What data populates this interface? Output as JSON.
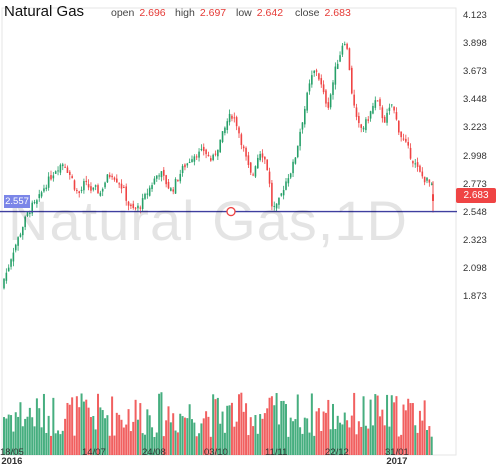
{
  "header": {
    "title": "Natural Gas",
    "open_label": "open",
    "open_value": "2.696",
    "high_label": "high",
    "high_value": "2.697",
    "low_label": "low",
    "low_value": "2.642",
    "close_label": "close",
    "close_value": "2.683"
  },
  "watermark": "Natural Gas,1D",
  "price_badge": "2.683",
  "hline_badge": "2.557",
  "colors": {
    "up": "#26a069",
    "down": "#ef4444",
    "hline": "#3f3f9f",
    "badge": "#7b86e8"
  },
  "chart_data": {
    "type": "candlestick",
    "y_axis_labels": [
      "4.123",
      "3.898",
      "3.673",
      "3.448",
      "3.223",
      "2.998",
      "2.773",
      "2.548",
      "2.323",
      "2.098",
      "1.873"
    ],
    "ylim": [
      1.85,
      4.13
    ],
    "x_axis_labels": [
      {
        "main": "18/05",
        "sub": "2016"
      },
      {
        "main": "14/07",
        "sub": ""
      },
      {
        "main": "24/08",
        "sub": ""
      },
      {
        "main": "03/10",
        "sub": ""
      },
      {
        "main": "11/11",
        "sub": ""
      },
      {
        "main": "22/12",
        "sub": ""
      },
      {
        "main": "31/01",
        "sub": "2017"
      }
    ],
    "horizontal_line": 2.557,
    "last_close": 2.683,
    "close_path": [
      [
        0,
        1.94
      ],
      [
        4,
        2.02
      ],
      [
        8,
        2.1
      ],
      [
        12,
        2.22
      ],
      [
        16,
        2.3
      ],
      [
        20,
        2.38
      ],
      [
        24,
        2.47
      ],
      [
        28,
        2.55
      ],
      [
        32,
        2.6
      ],
      [
        36,
        2.62
      ],
      [
        40,
        2.68
      ],
      [
        44,
        2.75
      ],
      [
        48,
        2.8
      ],
      [
        52,
        2.85
      ],
      [
        56,
        2.9
      ],
      [
        60,
        2.93
      ],
      [
        64,
        2.95
      ],
      [
        68,
        2.88
      ],
      [
        72,
        2.82
      ],
      [
        76,
        2.72
      ],
      [
        80,
        2.7
      ],
      [
        84,
        2.78
      ],
      [
        88,
        2.76
      ],
      [
        92,
        2.72
      ],
      [
        96,
        2.74
      ],
      [
        100,
        2.7
      ],
      [
        104,
        2.78
      ],
      [
        108,
        2.84
      ],
      [
        112,
        2.86
      ],
      [
        116,
        2.82
      ],
      [
        120,
        2.78
      ],
      [
        124,
        2.72
      ],
      [
        128,
        2.62
      ],
      [
        132,
        2.57
      ],
      [
        136,
        2.58
      ],
      [
        140,
        2.6
      ],
      [
        144,
        2.66
      ],
      [
        148,
        2.72
      ],
      [
        152,
        2.78
      ],
      [
        156,
        2.84
      ],
      [
        160,
        2.88
      ],
      [
        164,
        2.82
      ],
      [
        168,
        2.76
      ],
      [
        172,
        2.72
      ],
      [
        176,
        2.8
      ],
      [
        180,
        2.86
      ],
      [
        184,
        2.92
      ],
      [
        188,
        2.95
      ],
      [
        192,
        3.0
      ],
      [
        196,
        3.02
      ],
      [
        200,
        3.02
      ],
      [
        204,
        3.05
      ],
      [
        208,
        3.0
      ],
      [
        212,
        2.96
      ],
      [
        216,
        3.04
      ],
      [
        220,
        3.12
      ],
      [
        224,
        3.2
      ],
      [
        228,
        3.3
      ],
      [
        232,
        3.33
      ],
      [
        236,
        3.28
      ],
      [
        240,
        3.16
      ],
      [
        244,
        3.04
      ],
      [
        248,
        2.92
      ],
      [
        252,
        2.82
      ],
      [
        256,
        2.96
      ],
      [
        260,
        3.04
      ],
      [
        264,
        3.0
      ],
      [
        268,
        2.88
      ],
      [
        272,
        2.6
      ],
      [
        276,
        2.58
      ],
      [
        280,
        2.66
      ],
      [
        284,
        2.76
      ],
      [
        288,
        2.84
      ],
      [
        292,
        2.9
      ],
      [
        296,
        3.02
      ],
      [
        300,
        3.2
      ],
      [
        304,
        3.35
      ],
      [
        308,
        3.52
      ],
      [
        312,
        3.64
      ],
      [
        316,
        3.7
      ],
      [
        320,
        3.6
      ],
      [
        324,
        3.48
      ],
      [
        328,
        3.4
      ],
      [
        332,
        3.55
      ],
      [
        336,
        3.72
      ],
      [
        340,
        3.82
      ],
      [
        344,
        3.95
      ],
      [
        348,
        3.82
      ],
      [
        352,
        3.5
      ],
      [
        356,
        3.3
      ],
      [
        360,
        3.22
      ],
      [
        364,
        3.24
      ],
      [
        368,
        3.3
      ],
      [
        372,
        3.38
      ],
      [
        376,
        3.45
      ],
      [
        380,
        3.38
      ],
      [
        384,
        3.28
      ],
      [
        388,
        3.34
      ],
      [
        392,
        3.42
      ],
      [
        396,
        3.3
      ],
      [
        400,
        3.18
      ],
      [
        404,
        3.12
      ],
      [
        408,
        3.06
      ],
      [
        412,
        2.98
      ],
      [
        416,
        2.92
      ],
      [
        420,
        2.86
      ],
      [
        424,
        2.82
      ],
      [
        428,
        2.8
      ],
      [
        432,
        2.75
      ],
      [
        434,
        2.683
      ]
    ]
  }
}
